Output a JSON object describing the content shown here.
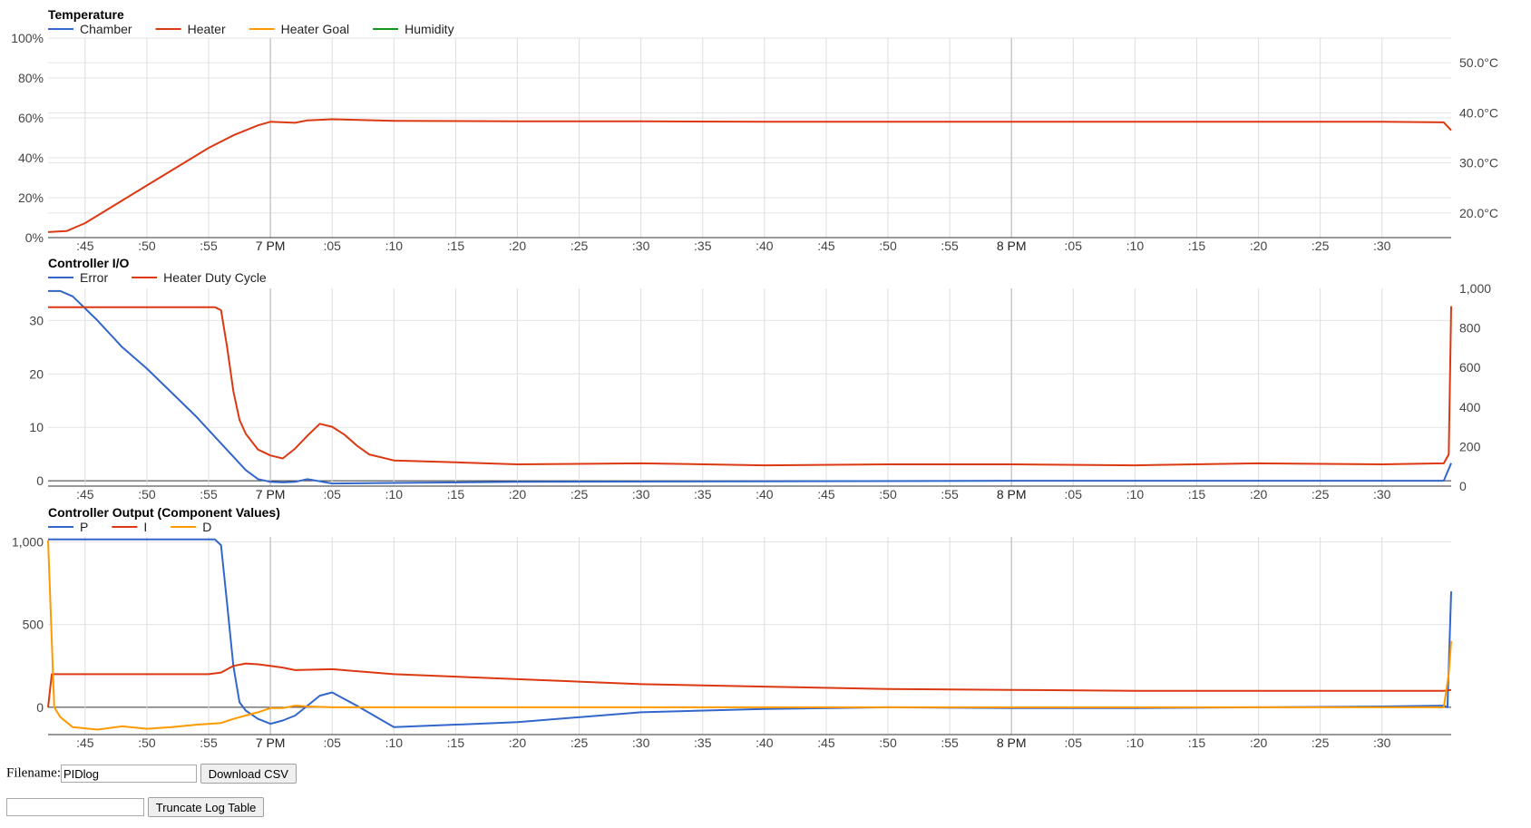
{
  "time_axis": {
    "labels": [
      ":45",
      ":50",
      ":55",
      "7 PM",
      ":05",
      ":10",
      ":15",
      ":20",
      ":25",
      ":30",
      ":35",
      ":40",
      ":45",
      ":50",
      ":55",
      "8 PM",
      ":05",
      ":10",
      ":15",
      ":20",
      ":25",
      ":30"
    ],
    "major_labels": [
      "7 PM",
      "8 PM"
    ],
    "start_minute": -18.0,
    "end_minute": 95.6
  },
  "colors": {
    "blue": "#3366cc",
    "red": "#dc3912",
    "orange": "#ff9900",
    "green": "#109618"
  },
  "chart_data": [
    {
      "type": "line",
      "title": "Temperature",
      "legend_position": "top-left",
      "grid": true,
      "left_axis": {
        "ticks": [
          "100%",
          "80%",
          "60%",
          "40%",
          "20%",
          "0%"
        ],
        "ylim": [
          0,
          100
        ]
      },
      "right_axis": {
        "ticks": [
          "50.0°C",
          "40.0°C",
          "30.0°C",
          "20.0°C"
        ],
        "ylim": [
          15.1,
          54.9
        ]
      },
      "series": [
        {
          "name": "Chamber",
          "color": "#3366cc",
          "axis": "right",
          "x": [],
          "y": []
        },
        {
          "name": "Heater",
          "color": "#dc3912",
          "axis": "right",
          "x": [
            -18,
            -16.5,
            -15,
            -10,
            -5,
            -3,
            -1,
            0,
            2,
            3,
            5,
            10,
            20,
            30,
            40,
            50,
            60,
            70,
            80,
            90,
            95,
            95.6
          ],
          "y": [
            16.2,
            16.4,
            18,
            25.5,
            33,
            35.5,
            37.5,
            38.2,
            38,
            38.5,
            38.7,
            38.4,
            38.3,
            38.3,
            38.2,
            38.2,
            38.2,
            38.2,
            38.2,
            38.2,
            38.1,
            36.5
          ]
        },
        {
          "name": "Heater Goal",
          "color": "#ff9900",
          "axis": "right",
          "x": [],
          "y": []
        },
        {
          "name": "Humidity",
          "color": "#109618",
          "axis": "left",
          "x": [],
          "y": []
        }
      ]
    },
    {
      "type": "line",
      "title": "Controller I/O",
      "legend_position": "top-left",
      "grid": true,
      "left_axis": {
        "ticks": [
          "30",
          "20",
          "10",
          "0"
        ],
        "ylim": [
          -1,
          36
        ]
      },
      "right_axis": {
        "ticks": [
          "1,000",
          "800",
          "600",
          "400",
          "200",
          "0"
        ],
        "ylim": [
          0,
          1000
        ]
      },
      "series": [
        {
          "name": "Error",
          "color": "#3366cc",
          "axis": "left",
          "x": [
            -18,
            -17,
            -16,
            -14,
            -12,
            -10,
            -8,
            -6,
            -4,
            -3,
            -2,
            -1,
            0,
            1,
            2,
            3,
            5,
            10,
            20,
            40,
            60,
            80,
            90,
            95,
            95.6
          ],
          "y": [
            35.5,
            35.5,
            34.5,
            30,
            25,
            21,
            16.5,
            12,
            7,
            4.5,
            2,
            0.3,
            -0.2,
            -0.3,
            -0.2,
            0.3,
            -0.5,
            -0.4,
            -0.2,
            -0.1,
            0,
            0,
            0,
            0,
            3.3
          ]
        },
        {
          "name": "Heater Duty Cycle",
          "color": "#dc3912",
          "axis": "right",
          "x": [
            -18,
            -10,
            -4.5,
            -4,
            -3.5,
            -3,
            -2.5,
            -2,
            -1,
            0,
            1,
            2,
            3,
            4,
            5,
            6,
            7,
            8,
            10,
            15,
            20,
            30,
            40,
            50,
            60,
            70,
            80,
            90,
            95,
            95.4,
            95.6
          ],
          "y": [
            905,
            905,
            905,
            890,
            700,
            480,
            335,
            265,
            185,
            155,
            140,
            190,
            255,
            315,
            300,
            260,
            205,
            160,
            130,
            120,
            110,
            115,
            105,
            110,
            110,
            105,
            115,
            110,
            115,
            160,
            910
          ]
        }
      ]
    },
    {
      "type": "line",
      "title": "Controller Output (Component Values)",
      "legend_position": "top-left",
      "grid": true,
      "left_axis": {
        "ticks": [
          "1,000",
          "500",
          "0"
        ],
        "ylim": [
          -165,
          1030
        ]
      },
      "series": [
        {
          "name": "P",
          "color": "#3366cc",
          "axis": "left",
          "x": [
            -18,
            -5,
            -4.5,
            -4,
            -3.5,
            -3,
            -2.5,
            -2,
            -1,
            0,
            1,
            2,
            3,
            4,
            5,
            7,
            10,
            20,
            30,
            40,
            50,
            60,
            70,
            80,
            90,
            95,
            95.3,
            95.6
          ],
          "y": [
            1015,
            1015,
            1015,
            980,
            620,
            250,
            30,
            -20,
            -70,
            -100,
            -80,
            -50,
            10,
            70,
            90,
            10,
            -120,
            -90,
            -30,
            -10,
            0,
            -5,
            -5,
            0,
            5,
            10,
            0,
            700
          ]
        },
        {
          "name": "I",
          "color": "#dc3912",
          "axis": "left",
          "x": [
            -18,
            -17.7,
            -17,
            -10,
            -5,
            -4,
            -3,
            -2,
            -1,
            0,
            1,
            2,
            5,
            10,
            20,
            30,
            40,
            50,
            60,
            70,
            80,
            90,
            95,
            95.6
          ],
          "y": [
            0,
            200,
            200,
            200,
            200,
            210,
            250,
            265,
            260,
            250,
            240,
            225,
            230,
            200,
            170,
            140,
            125,
            110,
            105,
            100,
            100,
            100,
            100,
            105
          ]
        },
        {
          "name": "D",
          "color": "#ff9900",
          "axis": "left",
          "x": [
            -18,
            -17.5,
            -17,
            -16,
            -14,
            -12,
            -10,
            -8,
            -6,
            -4,
            -3,
            -2,
            -1,
            0,
            1,
            2,
            3,
            5,
            10,
            20,
            40,
            60,
            80,
            95,
            95.4,
            95.6
          ],
          "y": [
            1010,
            0,
            -60,
            -120,
            -135,
            -115,
            -130,
            -120,
            -105,
            -95,
            -70,
            -50,
            -30,
            -5,
            -5,
            10,
            5,
            0,
            0,
            0,
            0,
            0,
            0,
            0,
            200,
            400
          ]
        }
      ]
    }
  ],
  "form": {
    "filename_label": "Filename:",
    "filename_value": "PIDlog",
    "download_label": "Download CSV",
    "truncate_value": "",
    "truncate_label": "Truncate Log Table"
  }
}
